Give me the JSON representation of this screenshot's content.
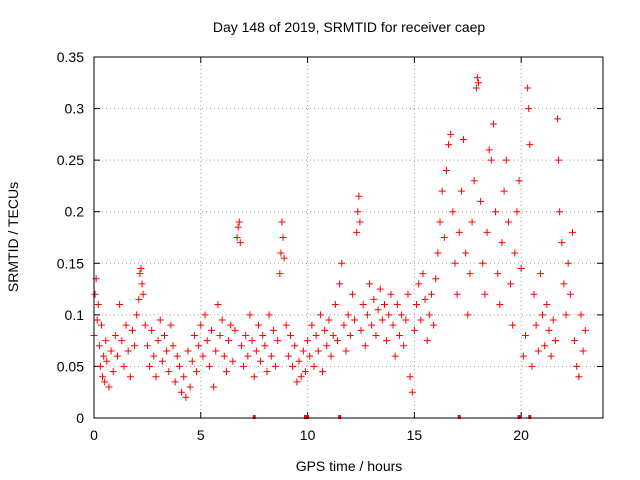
{
  "chart_data": {
    "type": "scatter",
    "title": "Day 148 of 2019, SRMTID for receiver caep",
    "xlabel": "GPS time / hours",
    "ylabel": "SRMTID / TECUs",
    "xlim": [
      0,
      23.83
    ],
    "ylim": [
      0,
      0.35
    ],
    "grid": true,
    "marker": "+",
    "color": "#ff0000",
    "x_ticks": [
      0,
      5,
      10,
      15,
      20
    ],
    "x_tick_labels": [
      "0",
      "5",
      "10",
      "15",
      "20"
    ],
    "y_ticks": [
      0,
      0.05,
      0.1,
      0.15,
      0.2,
      0.25,
      0.3,
      0.35
    ],
    "y_tick_labels": [
      "0",
      "0.05",
      "0.1",
      "0.15",
      "0.2",
      "0.25",
      "0.3",
      "0.35"
    ],
    "series": [
      {
        "name": "SRMTID",
        "points": [
          [
            0.0,
            0.08
          ],
          [
            0.05,
            0.12
          ],
          [
            0.1,
            0.135
          ],
          [
            0.15,
            0.095
          ],
          [
            0.2,
            0.11
          ],
          [
            0.25,
            0.07
          ],
          [
            0.3,
            0.05
          ],
          [
            0.35,
            0.09
          ],
          [
            0.4,
            0.04
          ],
          [
            0.45,
            0.06
          ],
          [
            0.5,
            0.035
          ],
          [
            0.55,
            0.075
          ],
          [
            0.6,
            0.055
          ],
          [
            0.7,
            0.03
          ],
          [
            0.8,
            0.065
          ],
          [
            0.9,
            0.045
          ],
          [
            1.0,
            0.08
          ],
          [
            1.1,
            0.06
          ],
          [
            1.2,
            0.11
          ],
          [
            1.3,
            0.075
          ],
          [
            1.4,
            0.05
          ],
          [
            1.5,
            0.09
          ],
          [
            1.6,
            0.065
          ],
          [
            1.7,
            0.04
          ],
          [
            1.8,
            0.085
          ],
          [
            1.9,
            0.07
          ],
          [
            2.0,
            0.1
          ],
          [
            2.1,
            0.115
          ],
          [
            2.15,
            0.14
          ],
          [
            2.2,
            0.145
          ],
          [
            2.25,
            0.13
          ],
          [
            2.3,
            0.12
          ],
          [
            2.4,
            0.09
          ],
          [
            2.5,
            0.07
          ],
          [
            2.6,
            0.05
          ],
          [
            2.7,
            0.085
          ],
          [
            2.8,
            0.06
          ],
          [
            2.9,
            0.04
          ],
          [
            3.0,
            0.075
          ],
          [
            3.1,
            0.095
          ],
          [
            3.2,
            0.055
          ],
          [
            3.3,
            0.08
          ],
          [
            3.4,
            0.065
          ],
          [
            3.5,
            0.045
          ],
          [
            3.6,
            0.09
          ],
          [
            3.7,
            0.07
          ],
          [
            3.8,
            0.035
          ],
          [
            3.9,
            0.06
          ],
          [
            4.0,
            0.05
          ],
          [
            4.1,
            0.025
          ],
          [
            4.2,
            0.04
          ],
          [
            4.3,
            0.02
          ],
          [
            4.4,
            0.065
          ],
          [
            4.5,
            0.03
          ],
          [
            4.6,
            0.055
          ],
          [
            4.7,
            0.08
          ],
          [
            4.8,
            0.045
          ],
          [
            4.9,
            0.07
          ],
          [
            5.0,
            0.09
          ],
          [
            5.1,
            0.06
          ],
          [
            5.2,
            0.1
          ],
          [
            5.3,
            0.075
          ],
          [
            5.4,
            0.05
          ],
          [
            5.5,
            0.085
          ],
          [
            5.6,
            0.03
          ],
          [
            5.7,
            0.065
          ],
          [
            5.8,
            0.11
          ],
          [
            5.9,
            0.08
          ],
          [
            6.0,
            0.095
          ],
          [
            6.1,
            0.06
          ],
          [
            6.2,
            0.045
          ],
          [
            6.3,
            0.075
          ],
          [
            6.4,
            0.09
          ],
          [
            6.5,
            0.055
          ],
          [
            6.6,
            0.085
          ],
          [
            6.7,
            0.175
          ],
          [
            6.75,
            0.185
          ],
          [
            6.8,
            0.19
          ],
          [
            6.85,
            0.17
          ],
          [
            6.9,
            0.07
          ],
          [
            7.0,
            0.05
          ],
          [
            7.1,
            0.08
          ],
          [
            7.2,
            0.06
          ],
          [
            7.3,
            0.1
          ],
          [
            7.4,
            0.075
          ],
          [
            7.5,
            0.04
          ],
          [
            7.6,
            0.065
          ],
          [
            7.7,
            0.09
          ],
          [
            7.8,
            0.055
          ],
          [
            7.9,
            0.08
          ],
          [
            8.0,
            0.07
          ],
          [
            8.1,
            0.045
          ],
          [
            8.2,
            0.1
          ],
          [
            8.3,
            0.06
          ],
          [
            8.4,
            0.085
          ],
          [
            8.5,
            0.05
          ],
          [
            8.6,
            0.075
          ],
          [
            8.7,
            0.14
          ],
          [
            8.75,
            0.16
          ],
          [
            8.8,
            0.19
          ],
          [
            8.85,
            0.175
          ],
          [
            8.9,
            0.155
          ],
          [
            9.0,
            0.09
          ],
          [
            9.1,
            0.06
          ],
          [
            9.2,
            0.08
          ],
          [
            9.3,
            0.05
          ],
          [
            9.4,
            0.07
          ],
          [
            9.5,
            0.035
          ],
          [
            9.6,
            0.055
          ],
          [
            9.7,
            0.04
          ],
          [
            9.8,
            0.065
          ],
          [
            9.9,
            0.045
          ],
          [
            10.0,
            0.075
          ],
          [
            10.1,
            0.06
          ],
          [
            10.2,
            0.09
          ],
          [
            10.3,
            0.05
          ],
          [
            10.4,
            0.08
          ],
          [
            10.5,
            0.065
          ],
          [
            10.6,
            0.1
          ],
          [
            10.7,
            0.045
          ],
          [
            10.8,
            0.085
          ],
          [
            10.9,
            0.07
          ],
          [
            11.0,
            0.095
          ],
          [
            11.1,
            0.06
          ],
          [
            11.2,
            0.08
          ],
          [
            11.3,
            0.11
          ],
          [
            11.4,
            0.075
          ],
          [
            11.5,
            0.13
          ],
          [
            11.6,
            0.15
          ],
          [
            11.7,
            0.09
          ],
          [
            11.8,
            0.065
          ],
          [
            11.9,
            0.1
          ],
          [
            12.0,
            0.08
          ],
          [
            12.1,
            0.12
          ],
          [
            12.2,
            0.095
          ],
          [
            12.3,
            0.18
          ],
          [
            12.35,
            0.2
          ],
          [
            12.4,
            0.215
          ],
          [
            12.45,
            0.19
          ],
          [
            12.5,
            0.085
          ],
          [
            12.6,
            0.11
          ],
          [
            12.7,
            0.07
          ],
          [
            12.8,
            0.1
          ],
          [
            12.9,
            0.13
          ],
          [
            13.0,
            0.09
          ],
          [
            13.1,
            0.115
          ],
          [
            13.2,
            0.08
          ],
          [
            13.3,
            0.105
          ],
          [
            13.4,
            0.125
          ],
          [
            13.5,
            0.095
          ],
          [
            13.6,
            0.11
          ],
          [
            13.7,
            0.075
          ],
          [
            13.8,
            0.1
          ],
          [
            13.9,
            0.12
          ],
          [
            14.0,
            0.09
          ],
          [
            14.1,
            0.06
          ],
          [
            14.2,
            0.11
          ],
          [
            14.3,
            0.08
          ],
          [
            14.4,
            0.1
          ],
          [
            14.5,
            0.07
          ],
          [
            14.6,
            0.095
          ],
          [
            14.7,
            0.12
          ],
          [
            14.8,
            0.04
          ],
          [
            14.9,
            0.025
          ],
          [
            15.0,
            0.085
          ],
          [
            15.1,
            0.11
          ],
          [
            15.2,
            0.13
          ],
          [
            15.3,
            0.095
          ],
          [
            15.4,
            0.14
          ],
          [
            15.5,
            0.115
          ],
          [
            15.6,
            0.075
          ],
          [
            15.7,
            0.1
          ],
          [
            15.8,
            0.12
          ],
          [
            15.9,
            0.09
          ],
          [
            16.0,
            0.135
          ],
          [
            16.1,
            0.16
          ],
          [
            16.2,
            0.19
          ],
          [
            16.3,
            0.22
          ],
          [
            16.4,
            0.175
          ],
          [
            16.5,
            0.24
          ],
          [
            16.6,
            0.265
          ],
          [
            16.7,
            0.275
          ],
          [
            16.8,
            0.2
          ],
          [
            16.9,
            0.15
          ],
          [
            17.0,
            0.12
          ],
          [
            17.1,
            0.18
          ],
          [
            17.2,
            0.22
          ],
          [
            17.3,
            0.27
          ],
          [
            17.4,
            0.16
          ],
          [
            17.5,
            0.1
          ],
          [
            17.6,
            0.14
          ],
          [
            17.7,
            0.19
          ],
          [
            17.8,
            0.23
          ],
          [
            17.9,
            0.32
          ],
          [
            17.95,
            0.33
          ],
          [
            18.0,
            0.325
          ],
          [
            18.1,
            0.21
          ],
          [
            18.2,
            0.15
          ],
          [
            18.3,
            0.12
          ],
          [
            18.4,
            0.18
          ],
          [
            18.5,
            0.26
          ],
          [
            18.6,
            0.25
          ],
          [
            18.7,
            0.285
          ],
          [
            18.8,
            0.2
          ],
          [
            18.9,
            0.14
          ],
          [
            19.0,
            0.11
          ],
          [
            19.1,
            0.17
          ],
          [
            19.2,
            0.22
          ],
          [
            19.3,
            0.25
          ],
          [
            19.4,
            0.19
          ],
          [
            19.5,
            0.13
          ],
          [
            19.6,
            0.09
          ],
          [
            19.7,
            0.16
          ],
          [
            19.8,
            0.2
          ],
          [
            19.9,
            0.23
          ],
          [
            20.0,
            0.145
          ],
          [
            20.1,
            0.06
          ],
          [
            20.2,
            0.08
          ],
          [
            20.3,
            0.32
          ],
          [
            20.35,
            0.3
          ],
          [
            20.4,
            0.265
          ],
          [
            20.5,
            0.05
          ],
          [
            20.6,
            0.12
          ],
          [
            20.7,
            0.09
          ],
          [
            20.8,
            0.065
          ],
          [
            20.9,
            0.14
          ],
          [
            21.0,
            0.1
          ],
          [
            21.1,
            0.07
          ],
          [
            21.2,
            0.11
          ],
          [
            21.3,
            0.085
          ],
          [
            21.4,
            0.06
          ],
          [
            21.5,
            0.095
          ],
          [
            21.6,
            0.075
          ],
          [
            21.7,
            0.29
          ],
          [
            21.75,
            0.25
          ],
          [
            21.8,
            0.2
          ],
          [
            21.9,
            0.17
          ],
          [
            22.0,
            0.13
          ],
          [
            22.1,
            0.1
          ],
          [
            22.2,
            0.15
          ],
          [
            22.3,
            0.12
          ],
          [
            22.4,
            0.18
          ],
          [
            22.5,
            0.075
          ],
          [
            22.6,
            0.05
          ],
          [
            22.7,
            0.04
          ],
          [
            22.8,
            0.1
          ],
          [
            22.9,
            0.065
          ],
          [
            23.0,
            0.085
          ]
        ]
      }
    ]
  }
}
